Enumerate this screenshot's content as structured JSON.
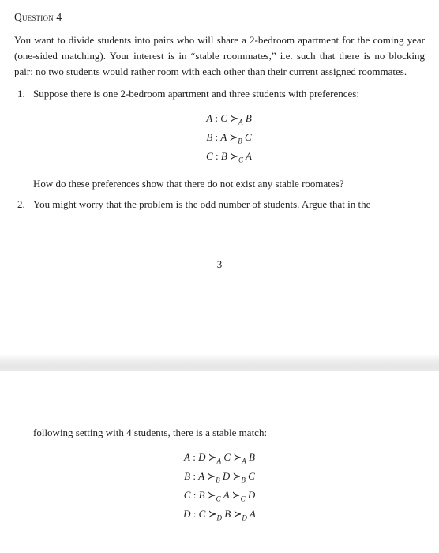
{
  "title_prefix": "Q",
  "title_rest": "uestion 4",
  "intro": "You want to divide students into pairs who will share a 2-bedroom apartment for the coming year (one-sided matching). Your interest is in “stable roommates,” i.e. such that there is no blocking pair: no two students would rather room with each other than their current assigned roommates.",
  "item1_num": "1.",
  "item1_text": "Suppose there is one 2-bedroom apartment and three students with preferences:",
  "prefs1": {
    "a_label": "A",
    "a_left": "C",
    "a_sub": "A",
    "a_right": "B",
    "b_label": "B",
    "b_left": "A",
    "b_sub": "B",
    "b_right": "C",
    "c_label": "C",
    "c_left": "B",
    "c_sub": "C",
    "c_right": "A"
  },
  "item1_follow": "How do these preferences show that there do not exist any stable roomates?",
  "item2_num": "2.",
  "item2_text": "You might worry that the problem is the odd number of students. Argue that in the",
  "page_number": "3",
  "item2_cont": "following setting with 4 students, there is a stable match:",
  "prefs2": {
    "a": {
      "label": "A",
      "p1": "D",
      "s1": "A",
      "p2": "C",
      "s2": "A",
      "p3": "B"
    },
    "b": {
      "label": "B",
      "p1": "A",
      "s1": "B",
      "p2": "D",
      "s2": "B",
      "p3": "C"
    },
    "c": {
      "label": "C",
      "p1": "B",
      "s1": "C",
      "p2": "A",
      "s2": "C",
      "p3": "D"
    },
    "d": {
      "label": "D",
      "p1": "C",
      "s1": "D",
      "p2": "B",
      "s2": "D",
      "p3": "A"
    }
  },
  "colon": " :  ",
  "succ": "≻"
}
